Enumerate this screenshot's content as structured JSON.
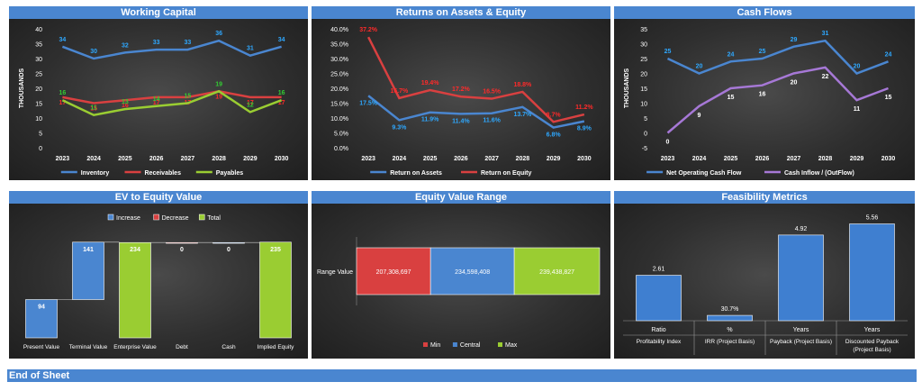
{
  "footer": {
    "label": "End of Sheet"
  },
  "chart_data": [
    {
      "id": "wc",
      "type": "line",
      "title": "Working Capital",
      "ylabel": "THOUSANDS",
      "ylim": [
        0,
        40
      ],
      "yticks": [
        "0",
        "5",
        "10",
        "15",
        "20",
        "25",
        "30",
        "35",
        "40"
      ],
      "categories": [
        "2023",
        "2024",
        "2025",
        "2026",
        "2027",
        "2028",
        "2029",
        "2030"
      ],
      "series": [
        {
          "name": "Inventory",
          "color": "#4a86d0",
          "label_color": "#2ea8ff",
          "values": [
            34,
            30,
            32,
            33,
            33,
            36,
            31,
            34
          ]
        },
        {
          "name": "Receivables",
          "color": "#d94040",
          "label_color": "#ff2a2a",
          "values": [
            17,
            15,
            16,
            17,
            17,
            19,
            17,
            17
          ]
        },
        {
          "name": "Payables",
          "color": "#9acd32",
          "label_color": "#33cc33",
          "values": [
            16,
            11,
            13,
            14,
            15,
            19,
            12,
            16
          ]
        }
      ],
      "value_labels": [
        [
          "34",
          "30",
          "32",
          "33",
          "33",
          "36",
          "31",
          "34"
        ],
        [
          "17",
          "15",
          "16",
          "17",
          "17",
          "19",
          "17",
          "17"
        ],
        [
          "16",
          "11",
          "13",
          "14",
          "15",
          "19",
          "12",
          "16"
        ]
      ],
      "legend": "bottom"
    },
    {
      "id": "roa",
      "type": "line",
      "title": "Returns on Assets & Equity",
      "ylabel": "",
      "ylim": [
        0,
        40
      ],
      "yticks": [
        "0.0%",
        "5.0%",
        "10.0%",
        "15.0%",
        "20.0%",
        "25.0%",
        "30.0%",
        "35.0%",
        "40.0%"
      ],
      "categories": [
        "2023",
        "2024",
        "2025",
        "2026",
        "2027",
        "2028",
        "2029",
        "2030"
      ],
      "series": [
        {
          "name": "Return on Assets",
          "color": "#4a86d0",
          "label_color": "#2ea8ff",
          "values": [
            17.5,
            9.3,
            11.9,
            11.4,
            11.6,
            13.7,
            6.8,
            8.9
          ]
        },
        {
          "name": "Return on Equity",
          "color": "#d94040",
          "label_color": "#ff2a2a",
          "values": [
            37.2,
            16.7,
            19.4,
            17.2,
            16.5,
            18.8,
            8.7,
            11.2
          ]
        }
      ],
      "value_labels": [
        [
          "17.5%",
          "9.3%",
          "11.9%",
          "11.4%",
          "11.6%",
          "13.7%",
          "6.8%",
          "8.9%"
        ],
        [
          "37.2%",
          "16.7%",
          "19.4%",
          "17.2%",
          "16.5%",
          "18.8%",
          "8.7%",
          "11.2%"
        ]
      ],
      "legend": "bottom"
    },
    {
      "id": "cf",
      "type": "line",
      "title": "Cash Flows",
      "ylabel": "THOUSANDS",
      "ylim": [
        -5,
        35
      ],
      "yticks": [
        "-5",
        "0",
        "5",
        "10",
        "15",
        "20",
        "25",
        "30",
        "35"
      ],
      "categories": [
        "2023",
        "2024",
        "2025",
        "2026",
        "2027",
        "2028",
        "2029",
        "2030"
      ],
      "series": [
        {
          "name": "Net Operating Cash Flow",
          "color": "#4a86d0",
          "label_color": "#2ea8ff",
          "values": [
            25,
            20,
            24,
            25,
            29,
            31,
            20,
            24
          ]
        },
        {
          "name": "Cash Inflow / (OutFlow)",
          "color": "#a678d6",
          "label_color": "#ffffff",
          "values": [
            0,
            9,
            15,
            16,
            20,
            22,
            11,
            15
          ]
        }
      ],
      "value_labels": [
        [
          "25",
          "20",
          "24",
          "25",
          "29",
          "31",
          "20",
          "24"
        ],
        [
          "0",
          "9",
          "15",
          "16",
          "20",
          "22",
          "11",
          "15"
        ]
      ],
      "legend": "bottom"
    },
    {
      "id": "ev",
      "type": "bar",
      "title": "EV to Equity Value",
      "legend_items": [
        {
          "name": "Increase",
          "color": "#4a86d0"
        },
        {
          "name": "Decrease",
          "color": "#d94040"
        },
        {
          "name": "Total",
          "color": "#9acd32"
        }
      ],
      "categories": [
        "Present Value",
        "Terminal Value",
        "Enterprise Value",
        "Debt",
        "Cash",
        "Implied Equity"
      ],
      "values": [
        94,
        141,
        234,
        0,
        0,
        235
      ],
      "kinds": [
        "increase",
        "increase",
        "total",
        "decrease",
        "increase",
        "total"
      ],
      "value_labels": [
        "94",
        "141",
        "234",
        "0",
        "0",
        "235"
      ],
      "ylim": [
        0,
        250
      ]
    },
    {
      "id": "evr",
      "type": "bar",
      "title": "Equity Value Range",
      "category": "Range Value",
      "segments": [
        {
          "name": "Min",
          "value": 207308697,
          "label": "207,308,697",
          "color": "#d94040"
        },
        {
          "name": "Central",
          "value": 234598408,
          "label": "234,598,408",
          "color": "#4a86d0"
        },
        {
          "name": "Max",
          "value": 239438827,
          "label": "239,438,827",
          "color": "#9acd32"
        }
      ],
      "legend": "bottom"
    },
    {
      "id": "feas",
      "type": "bar",
      "title": "Feasibility Metrics",
      "values": [
        2.61,
        0.307,
        4.92,
        5.56
      ],
      "value_labels": [
        "2.61",
        "30.7%",
        "4.92",
        "5.56"
      ],
      "units": [
        "Ratio",
        "%",
        "Years",
        "Years"
      ],
      "categories": [
        "Profitability Index",
        "IRR (Project Basis)",
        "Payback  (Project Basis)",
        "Discounted Payback (Project Basis)"
      ],
      "ylim": [
        0,
        6
      ]
    }
  ]
}
